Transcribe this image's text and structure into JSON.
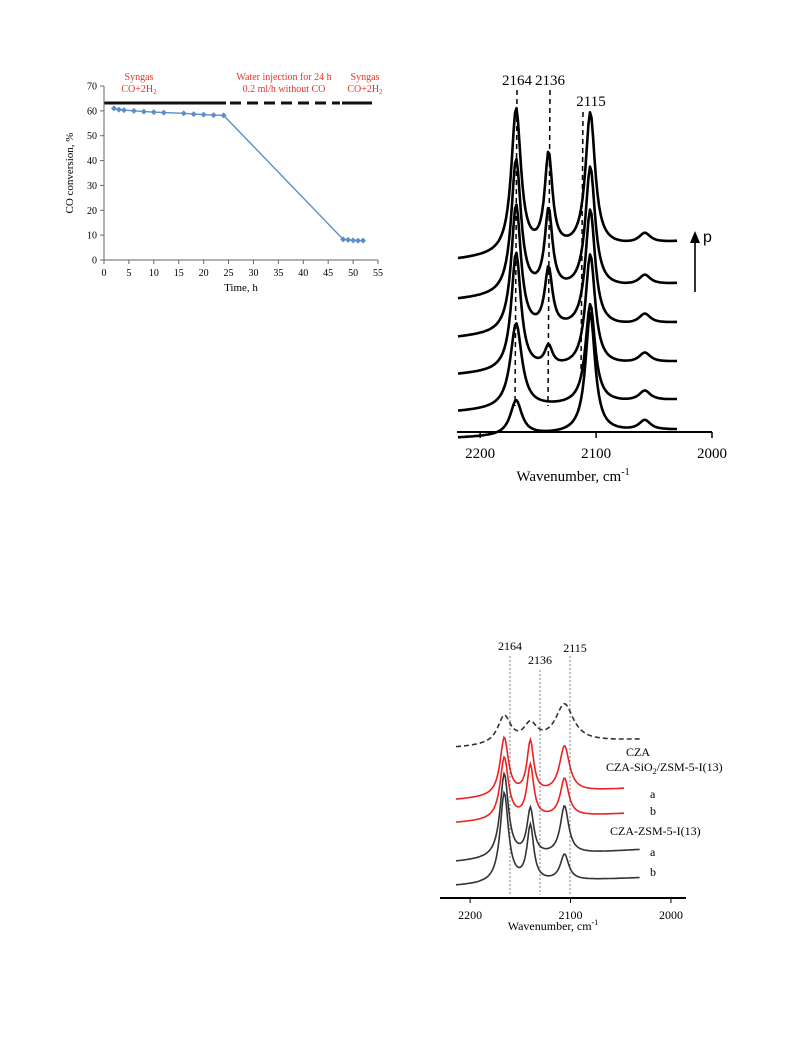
{
  "chart_data": [
    {
      "type": "line",
      "xlabel": "Time, h",
      "ylabel": "CO conversion, %",
      "xlim": [
        0,
        55
      ],
      "ylim": [
        0,
        70
      ],
      "xticks": [
        0,
        5,
        10,
        15,
        20,
        25,
        30,
        35,
        40,
        45,
        50,
        55
      ],
      "yticks": [
        0,
        10,
        20,
        30,
        40,
        50,
        60,
        70
      ],
      "x": [
        2,
        3,
        4,
        6,
        8,
        10,
        12,
        16,
        18,
        20,
        22,
        24,
        48,
        49,
        50,
        51,
        52
      ],
      "y": [
        61,
        60.5,
        60.3,
        60,
        59.7,
        59.5,
        59.3,
        59,
        58.7,
        58.5,
        58.3,
        58.2,
        8.3,
        8.1,
        7.9,
        7.8,
        7.8
      ],
      "annotations": [
        {
          "line1": "Syngas",
          "line2a": "CO+2H",
          "line2sub": "2"
        },
        {
          "line1": "Water injection for 24 h",
          "line2a": "0.2 ml/h without CO",
          "line2sub": ""
        },
        {
          "line1": "Syngas",
          "line2a": "CO+2H",
          "line2sub": "2"
        }
      ],
      "colors": {
        "series": "#5b8ecb",
        "annotation": "#e8332a"
      }
    },
    {
      "type": "line",
      "xlabel": "Wavenumber, cm",
      "xlabel_sup": "-1",
      "xlim": [
        2220,
        2000
      ],
      "xticks": [
        2200,
        2100,
        2000
      ],
      "peak_labels": [
        "2164",
        "2136",
        "2115"
      ],
      "peaks": [
        2164,
        2136,
        2115
      ],
      "arrow_label": "p",
      "spectra_count": 6
    },
    {
      "type": "line",
      "xlabel": "Wavenumber, cm",
      "xlabel_sup": "-1",
      "xlim": [
        2230,
        1985
      ],
      "xticks": [
        2200,
        2100,
        2000
      ],
      "peak_labels": [
        "2164",
        "2136",
        "2115"
      ],
      "peaks": [
        2164,
        2136,
        2115
      ],
      "series": [
        {
          "name": "CZA"
        },
        {
          "name": "CZA-SiO",
          "sub": "2",
          "rest": "/ZSM-5-I(13)",
          "traces": [
            "a",
            "b"
          ]
        },
        {
          "name": "CZA-ZSM-5-I(13)",
          "traces": [
            "a",
            "b"
          ]
        }
      ],
      "colors": {
        "cza": "#333333",
        "sio2": "#ee2222",
        "zsm": "#333333"
      }
    }
  ]
}
